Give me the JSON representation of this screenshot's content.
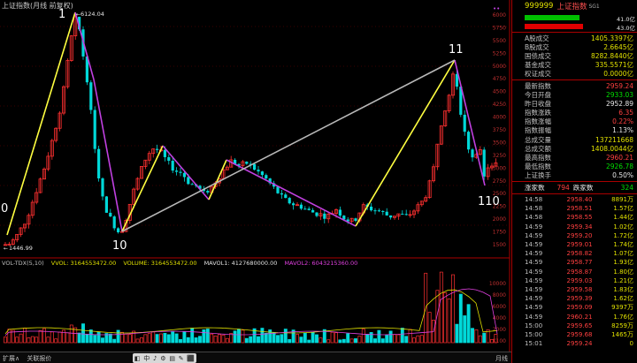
{
  "title": "上证指数(月线 前复权)",
  "annotations": {
    "n0": "0",
    "n1": "1",
    "n10": "10",
    "n11": "11",
    "n110": "110",
    "peak": "6124.04",
    "low": "1446.99"
  },
  "volume_header": {
    "label": "VOL-TDX(5,10)",
    "vvol": "VVOL: 3164553472.00",
    "volume": "VOLUME: 3164553472.00",
    "mavol1": "MAVOL1: 4127680000.00",
    "mavol2": "MAVOL2: 6043215360.00"
  },
  "price_scale": [
    "6000",
    "5750",
    "5500",
    "5250",
    "5000",
    "4750",
    "4500",
    "4250",
    "4000",
    "3750",
    "3500",
    "3250",
    "3000",
    "2750",
    "2500",
    "2250",
    "2000",
    "1750",
    "1500"
  ],
  "volume_scale": [
    "10000",
    "8000",
    "6000",
    "4000",
    "2000",
    "X100"
  ],
  "bottom_bar": {
    "left": [
      "扩展∧",
      "关联报价"
    ],
    "tools": [
      "◧",
      "中",
      "♪",
      "⚙",
      "▤",
      "✎",
      "⬛"
    ],
    "right": "月线"
  },
  "panel": {
    "code": "999999",
    "name": "上证指数",
    "name_sub": "SG1",
    "bar1_value": "41.0亿",
    "bar2_value": "43.0亿",
    "colors": {
      "up": "#ff4040",
      "down": "#00e000",
      "flat": "#e8e8e8",
      "yellow": "#e0e000"
    },
    "market": [
      {
        "k": "A股成交",
        "v": "1405.3397亿"
      },
      {
        "k": "B股成交",
        "v": "2.6645亿"
      },
      {
        "k": "国债成交",
        "v": "8282.8440亿"
      },
      {
        "k": "基金成交",
        "v": "335.5571亿"
      },
      {
        "k": "权证成交",
        "v": "0.0000亿"
      }
    ],
    "quote": [
      {
        "k": "最新指数",
        "v": "2959.24",
        "c": "red"
      },
      {
        "k": "今日开盘",
        "v": "2933.03",
        "c": "green"
      },
      {
        "k": "昨日收盘",
        "v": "2952.89",
        "c": "white"
      },
      {
        "k": "指数涨跌",
        "v": "6.35",
        "c": "red"
      },
      {
        "k": "指数涨幅",
        "v": "0.22%",
        "c": "red"
      },
      {
        "k": "指数振幅",
        "v": "1.13%",
        "c": "white"
      },
      {
        "k": "总成交量",
        "v": "137211668",
        "c": "yellow"
      },
      {
        "k": "总成交额",
        "v": "1408.0044亿",
        "c": "yellow"
      },
      {
        "k": "最高指数",
        "v": "2960.21",
        "c": "red"
      },
      {
        "k": "最低指数",
        "v": "2926.78",
        "c": "green"
      },
      {
        "k": "上证换手",
        "v": "0.50%",
        "c": "white"
      }
    ],
    "updown": {
      "up_label": "涨家数",
      "up_val": "794",
      "down_label": "跌家数",
      "down_val": "324"
    },
    "trades": [
      {
        "t": "14:58",
        "p": "2958.40",
        "v": "8891万"
      },
      {
        "t": "14:58",
        "p": "2958.51",
        "v": "1.57亿"
      },
      {
        "t": "14:58",
        "p": "2958.55",
        "v": "1.44亿"
      },
      {
        "t": "14:59",
        "p": "2959.34",
        "v": "1.02亿"
      },
      {
        "t": "14:59",
        "p": "2959.20",
        "v": "1.72亿"
      },
      {
        "t": "14:59",
        "p": "2959.01",
        "v": "1.74亿"
      },
      {
        "t": "14:59",
        "p": "2958.82",
        "v": "1.07亿"
      },
      {
        "t": "14:59",
        "p": "2958.77",
        "v": "1.93亿"
      },
      {
        "t": "14:59",
        "p": "2958.87",
        "v": "1.80亿"
      },
      {
        "t": "14:59",
        "p": "2959.03",
        "v": "1.21亿"
      },
      {
        "t": "14:59",
        "p": "2959.58",
        "v": "1.83亿"
      },
      {
        "t": "14:59",
        "p": "2959.39",
        "v": "1.62亿"
      },
      {
        "t": "14:59",
        "p": "2959.09",
        "v": "9397万"
      },
      {
        "t": "14:59",
        "p": "2960.21",
        "v": "1.76亿"
      },
      {
        "t": "15:00",
        "p": "2959.65",
        "v": "8259万"
      },
      {
        "t": "15:00",
        "p": "2959.68",
        "v": "1465万"
      },
      {
        "t": "15:01",
        "p": "2959.24",
        "v": "0"
      }
    ]
  }
}
